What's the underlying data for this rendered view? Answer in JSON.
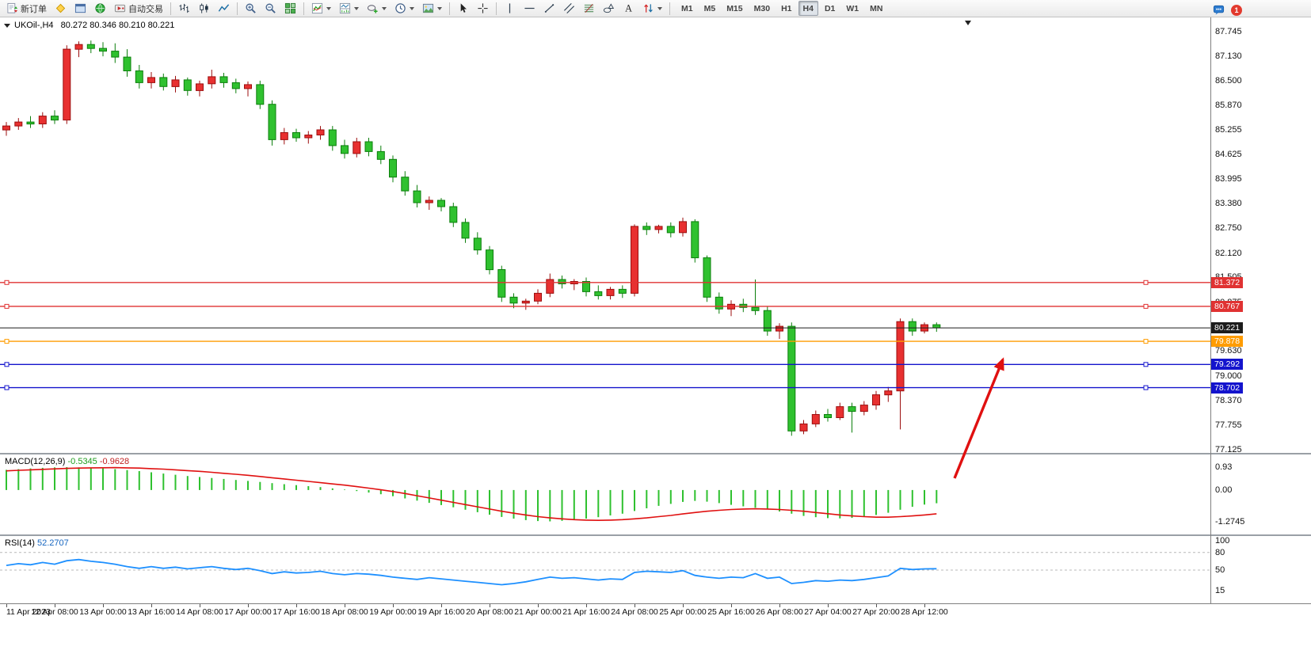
{
  "toolbar": {
    "items": [
      {
        "name": "new-order-button",
        "icon": "new-order-icon",
        "label": "新订单"
      },
      {
        "name": "metaeditor-button",
        "icon": "metaeditor-icon"
      },
      {
        "name": "chart-window-button",
        "icon": "chart-window-icon"
      },
      {
        "name": "community-button",
        "icon": "community-icon"
      },
      {
        "name": "autotrading-button",
        "icon": "autotrading-icon",
        "label": "自动交易"
      },
      {
        "sep": true
      },
      {
        "name": "bar-chart-button",
        "icon": "ohlc-bars-icon"
      },
      {
        "name": "candlestick-chart-button",
        "icon": "candlestick-icon"
      },
      {
        "name": "line-chart-button",
        "icon": "line-chart-icon"
      },
      {
        "sep": true
      },
      {
        "name": "zoom-in-button",
        "icon": "zoom-in-icon"
      },
      {
        "name": "zoom-out-button",
        "icon": "zoom-out-icon"
      },
      {
        "name": "tile-windows-button",
        "icon": "tile-windows-icon"
      },
      {
        "sep": true
      },
      {
        "name": "indicators-button",
        "icon": "indicators-icon",
        "dropdown": true
      },
      {
        "name": "indicator-windows-button",
        "icon": "indicator-windows-icon",
        "dropdown": true
      },
      {
        "name": "objects-button",
        "icon": "objects-icon",
        "dropdown": true
      },
      {
        "name": "periods-button",
        "icon": "clock-icon",
        "dropdown": true
      },
      {
        "name": "templates-button",
        "icon": "templates-icon",
        "dropdown": true
      },
      {
        "sep": true
      },
      {
        "name": "cursor-button",
        "icon": "cursor-icon"
      },
      {
        "name": "crosshair-button",
        "icon": "crosshair-icon"
      },
      {
        "sep": true
      },
      {
        "name": "vertical-line-button",
        "icon": "vertical-line-icon"
      },
      {
        "name": "horizontal-line-button",
        "icon": "horizontal-line-icon"
      },
      {
        "name": "trendline-button",
        "icon": "trendline-icon"
      },
      {
        "name": "channel-button",
        "icon": "channel-icon"
      },
      {
        "name": "fibonacci-button",
        "icon": "fibonacci-icon"
      },
      {
        "name": "shapes-button",
        "icon": "shapes-icon"
      },
      {
        "name": "text-button",
        "icon": "text-icon"
      },
      {
        "name": "arrows-button",
        "icon": "arrow-objects-icon",
        "dropdown": true
      },
      {
        "sep": true
      }
    ],
    "timeframes": {
      "options": [
        "M1",
        "M5",
        "M15",
        "M30",
        "H1",
        "H4",
        "D1",
        "W1",
        "MN"
      ],
      "active": "H4"
    },
    "right": {
      "notifications_count": "1"
    }
  },
  "chart": {
    "symbol_period": "UKOil-,H4",
    "ohlc": "80.272 80.346 80.210 80.221",
    "macd_name": "MACD(12,26,9)",
    "macd_value_main": "-0.5345",
    "macd_value_signal": "-0.9628",
    "rsi_name": "RSI(14)",
    "rsi_value": "52.2707"
  },
  "chart_data": {
    "type": "candlestick",
    "symbol": "UKOil-",
    "timeframe": "H4",
    "ohlc_current": {
      "open": 80.272,
      "high": 80.346,
      "low": 80.21,
      "close": 80.221
    },
    "y_axis_labels": [
      "87.745",
      "87.130",
      "86.500",
      "85.870",
      "85.255",
      "84.625",
      "83.995",
      "83.380",
      "82.750",
      "82.120",
      "81.505",
      "80.875",
      "80.260",
      "79.630",
      "79.000",
      "78.370",
      "77.755",
      "77.125"
    ],
    "x_axis_labels": [
      "11 Apr 2023",
      "12 Apr 08:00",
      "13 Apr 00:00",
      "13 Apr 16:00",
      "14 Apr 08:00",
      "17 Apr 00:00",
      "17 Apr 16:00",
      "18 Apr 08:00",
      "19 Apr 00:00",
      "19 Apr 16:00",
      "20 Apr 08:00",
      "21 Apr 00:00",
      "21 Apr 16:00",
      "24 Apr 08:00",
      "25 Apr 00:00",
      "25 Apr 16:00",
      "26 Apr 08:00",
      "27 Apr 04:00",
      "27 Apr 20:00",
      "28 Apr 12:00"
    ],
    "candles": [
      [
        85.25,
        85.45,
        85.1,
        85.35
      ],
      [
        85.35,
        85.55,
        85.25,
        85.45
      ],
      [
        85.45,
        85.6,
        85.3,
        85.4
      ],
      [
        85.4,
        85.7,
        85.3,
        85.6
      ],
      [
        85.6,
        85.75,
        85.4,
        85.5
      ],
      [
        85.5,
        87.4,
        85.4,
        87.3
      ],
      [
        87.3,
        87.5,
        87.1,
        87.42
      ],
      [
        87.42,
        87.52,
        87.2,
        87.32
      ],
      [
        87.32,
        87.48,
        87.12,
        87.25
      ],
      [
        87.25,
        87.45,
        86.95,
        87.1
      ],
      [
        87.1,
        87.3,
        86.6,
        86.75
      ],
      [
        86.75,
        86.9,
        86.3,
        86.45
      ],
      [
        86.45,
        86.72,
        86.3,
        86.58
      ],
      [
        86.58,
        86.68,
        86.25,
        86.35
      ],
      [
        86.35,
        86.62,
        86.2,
        86.52
      ],
      [
        86.52,
        86.58,
        86.12,
        86.25
      ],
      [
        86.25,
        86.5,
        86.1,
        86.42
      ],
      [
        86.42,
        86.78,
        86.3,
        86.6
      ],
      [
        86.6,
        86.7,
        86.32,
        86.45
      ],
      [
        86.45,
        86.55,
        86.18,
        86.3
      ],
      [
        86.3,
        86.48,
        86.1,
        86.4
      ],
      [
        86.4,
        86.5,
        85.78,
        85.9
      ],
      [
        85.9,
        86.0,
        84.85,
        85.0
      ],
      [
        85.0,
        85.3,
        84.88,
        85.18
      ],
      [
        85.18,
        85.28,
        84.95,
        85.05
      ],
      [
        85.05,
        85.22,
        84.9,
        85.12
      ],
      [
        85.12,
        85.35,
        85.0,
        85.25
      ],
      [
        85.25,
        85.35,
        84.72,
        84.85
      ],
      [
        84.85,
        85.0,
        84.52,
        84.65
      ],
      [
        84.65,
        85.05,
        84.55,
        84.95
      ],
      [
        84.95,
        85.05,
        84.58,
        84.7
      ],
      [
        84.7,
        84.85,
        84.38,
        84.5
      ],
      [
        84.5,
        84.6,
        83.92,
        84.05
      ],
      [
        84.05,
        84.2,
        83.58,
        83.7
      ],
      [
        83.7,
        83.85,
        83.28,
        83.4
      ],
      [
        83.4,
        83.56,
        83.22,
        83.46
      ],
      [
        83.46,
        83.52,
        83.18,
        83.3
      ],
      [
        83.3,
        83.4,
        82.78,
        82.9
      ],
      [
        82.9,
        83.0,
        82.38,
        82.5
      ],
      [
        82.5,
        82.65,
        82.08,
        82.2
      ],
      [
        82.2,
        82.3,
        81.58,
        81.7
      ],
      [
        81.7,
        81.8,
        80.88,
        81.0
      ],
      [
        81.0,
        81.1,
        80.72,
        80.85
      ],
      [
        80.85,
        80.96,
        80.68,
        80.9
      ],
      [
        80.9,
        81.2,
        80.82,
        81.1
      ],
      [
        81.1,
        81.6,
        81.0,
        81.45
      ],
      [
        81.45,
        81.55,
        81.22,
        81.34
      ],
      [
        81.34,
        81.46,
        81.18,
        81.4
      ],
      [
        81.4,
        81.5,
        81.02,
        81.14
      ],
      [
        81.14,
        81.3,
        80.94,
        81.04
      ],
      [
        81.04,
        81.26,
        80.94,
        81.2
      ],
      [
        81.2,
        81.3,
        80.98,
        81.1
      ],
      [
        81.1,
        82.85,
        81.02,
        82.8
      ],
      [
        82.8,
        82.9,
        82.58,
        82.72
      ],
      [
        82.72,
        82.84,
        82.62,
        82.8
      ],
      [
        82.8,
        82.9,
        82.52,
        82.64
      ],
      [
        82.64,
        83.02,
        82.54,
        82.92
      ],
      [
        82.92,
        82.98,
        81.88,
        82.0
      ],
      [
        82.0,
        82.06,
        80.88,
        81.0
      ],
      [
        81.0,
        81.12,
        80.58,
        80.7
      ],
      [
        80.7,
        80.92,
        80.52,
        80.82
      ],
      [
        80.82,
        80.96,
        80.62,
        80.74
      ],
      [
        80.74,
        81.45,
        80.55,
        80.66
      ],
      [
        80.66,
        80.76,
        80.02,
        80.14
      ],
      [
        80.14,
        80.34,
        79.94,
        80.26
      ],
      [
        80.26,
        80.36,
        77.48,
        77.6
      ],
      [
        77.6,
        77.88,
        77.52,
        77.78
      ],
      [
        77.78,
        78.12,
        77.7,
        78.02
      ],
      [
        78.02,
        78.16,
        77.84,
        77.94
      ],
      [
        77.94,
        78.32,
        77.88,
        78.22
      ],
      [
        78.22,
        78.32,
        77.56,
        78.1
      ],
      [
        78.1,
        78.36,
        78.0,
        78.26
      ],
      [
        78.26,
        78.62,
        78.14,
        78.52
      ],
      [
        78.52,
        78.72,
        78.34,
        78.62
      ],
      [
        78.62,
        80.46,
        77.64,
        80.38
      ],
      [
        80.38,
        80.46,
        80.02,
        80.14
      ],
      [
        80.14,
        80.36,
        80.08,
        80.3
      ],
      [
        80.3,
        80.36,
        80.12,
        80.221
      ]
    ],
    "horizontal_lines": [
      {
        "price": 81.372,
        "label": "81.372",
        "color": "#e03232",
        "name": "resistance-line-81372"
      },
      {
        "price": 80.767,
        "label": "80.767",
        "color": "#e03232",
        "name": "resistance-line-80767"
      },
      {
        "price": 80.221,
        "label": "80.221",
        "color": "#1c1c1c",
        "name": "bid-price-line",
        "is_price": true
      },
      {
        "price": 79.878,
        "label": "79.878",
        "color": "#ff9c00",
        "name": "support-line-79878"
      },
      {
        "price": 79.292,
        "label": "79.292",
        "color": "#1414cd",
        "name": "support-line-79292"
      },
      {
        "price": 78.702,
        "label": "78.702",
        "color": "#1414cd",
        "name": "support-line-78702"
      }
    ],
    "macd": {
      "axis_labels": [
        "0.93",
        "0.00",
        "-1.2745"
      ],
      "histogram": [
        0.82,
        0.85,
        0.88,
        0.9,
        0.92,
        0.93,
        0.92,
        0.9,
        0.88,
        0.85,
        0.81,
        0.77,
        0.72,
        0.67,
        0.62,
        0.57,
        0.53,
        0.49,
        0.45,
        0.41,
        0.37,
        0.33,
        0.28,
        0.24,
        0.2,
        0.16,
        0.12,
        0.07,
        0.02,
        -0.04,
        -0.1,
        -0.17,
        -0.25,
        -0.34,
        -0.43,
        -0.52,
        -0.61,
        -0.7,
        -0.8,
        -0.9,
        -1.0,
        -1.09,
        -1.16,
        -1.22,
        -1.26,
        -1.27,
        -1.25,
        -1.21,
        -1.16,
        -1.1,
        -1.03,
        -0.96,
        -0.85,
        -0.74,
        -0.64,
        -0.56,
        -0.48,
        -0.44,
        -0.47,
        -0.53,
        -0.6,
        -0.66,
        -0.72,
        -0.79,
        -0.87,
        -0.96,
        -1.05,
        -1.1,
        -1.14,
        -1.15,
        -1.13,
        -1.08,
        -1.01,
        -0.92,
        -0.8,
        -0.68,
        -0.59,
        -0.5345
      ],
      "signal": [
        0.78,
        0.8,
        0.82,
        0.84,
        0.86,
        0.88,
        0.89,
        0.9,
        0.905,
        0.91,
        0.9,
        0.89,
        0.87,
        0.85,
        0.82,
        0.79,
        0.76,
        0.72,
        0.68,
        0.64,
        0.6,
        0.55,
        0.5,
        0.45,
        0.4,
        0.35,
        0.3,
        0.25,
        0.2,
        0.14,
        0.08,
        0.01,
        -0.06,
        -0.14,
        -0.23,
        -0.32,
        -0.41,
        -0.5,
        -0.59,
        -0.68,
        -0.77,
        -0.86,
        -0.94,
        -1.01,
        -1.08,
        -1.13,
        -1.17,
        -1.2,
        -1.22,
        -1.23,
        -1.22,
        -1.2,
        -1.17,
        -1.13,
        -1.08,
        -1.03,
        -0.97,
        -0.91,
        -0.86,
        -0.82,
        -0.79,
        -0.77,
        -0.76,
        -0.77,
        -0.79,
        -0.82,
        -0.86,
        -0.91,
        -0.96,
        -1.01,
        -1.05,
        -1.08,
        -1.1,
        -1.1,
        -1.08,
        -1.05,
        -1.01,
        -0.9628
      ]
    },
    "rsi": {
      "axis_labels": [
        "100",
        "80",
        "50",
        "15"
      ],
      "levels": [
        80,
        50
      ],
      "values": [
        58,
        61,
        59,
        63,
        60,
        66,
        68,
        65,
        63,
        60,
        56,
        53,
        56,
        53,
        55,
        52,
        54,
        56,
        53,
        51,
        53,
        49,
        44,
        47,
        45,
        46,
        48,
        44,
        42,
        44,
        43,
        41,
        38,
        36,
        34,
        37,
        35,
        33,
        31,
        29,
        27,
        25,
        27,
        30,
        34,
        38,
        36,
        37,
        35,
        33,
        35,
        34,
        46,
        48,
        47,
        46,
        49,
        41,
        38,
        36,
        38,
        37,
        44,
        36,
        38,
        27,
        29,
        32,
        31,
        33,
        32,
        34,
        37,
        40,
        53,
        51,
        52,
        52.27
      ]
    },
    "arrow_annotation": {
      "direction": "up",
      "color": "#e01010"
    },
    "colors": {
      "bull": "#e83030",
      "bull_dark": "#9c0e0e",
      "bear": "#2fc12f",
      "bear_dark": "#0c7f0c",
      "macd_histogram": "#2fc12f",
      "macd_signal": "#e01010",
      "rsi_line": "#1e90ff",
      "level_dash": "#b8b8b8",
      "bid_tag_bg": "#1c1c1c"
    }
  }
}
